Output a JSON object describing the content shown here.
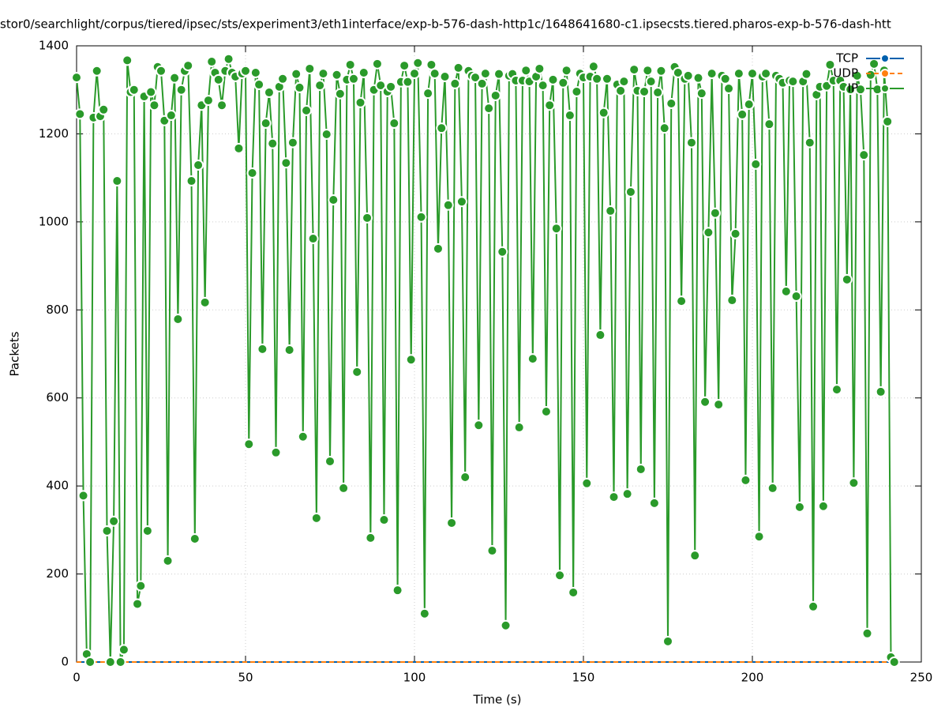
{
  "chart_data": {
    "type": "line",
    "title": "stor0/searchlight/corpus/tiered/ipsec/sts/experiment3/eth1interface/exp-b-576-dash-http1c/1648641680-c1.ipsecsts.tiered.pharos-exp-b-576-dash-htt",
    "x_label": "Time (s)",
    "y_label": "Packets",
    "xlim": [
      0,
      250
    ],
    "ylim": [
      0,
      1400
    ],
    "xticks": [
      0,
      50,
      100,
      150,
      200,
      250
    ],
    "yticks": [
      0,
      200,
      400,
      600,
      800,
      1000,
      1200,
      1400
    ],
    "grid": true,
    "legend": "top-right",
    "x": [
      0,
      1,
      2,
      3,
      4,
      5,
      6,
      7,
      8,
      9,
      10,
      11,
      12,
      13,
      14,
      15,
      16,
      17,
      18,
      19,
      20,
      21,
      22,
      23,
      24,
      25,
      26,
      27,
      28,
      29,
      30,
      31,
      32,
      33,
      34,
      35,
      36,
      37,
      38,
      39,
      40,
      41,
      42,
      43,
      44,
      45,
      46,
      47,
      48,
      49,
      50,
      51,
      52,
      53,
      54,
      55,
      56,
      57,
      58,
      59,
      60,
      61,
      62,
      63,
      64,
      65,
      66,
      67,
      68,
      69,
      70,
      71,
      72,
      73,
      74,
      75,
      76,
      77,
      78,
      79,
      80,
      81,
      82,
      83,
      84,
      85,
      86,
      87,
      88,
      89,
      90,
      91,
      92,
      93,
      94,
      95,
      96,
      97,
      98,
      99,
      100,
      101,
      102,
      103,
      104,
      105,
      106,
      107,
      108,
      109,
      110,
      111,
      112,
      113,
      114,
      115,
      116,
      117,
      118,
      119,
      120,
      121,
      122,
      123,
      124,
      125,
      126,
      127,
      128,
      129,
      130,
      131,
      132,
      133,
      134,
      135,
      136,
      137,
      138,
      139,
      140,
      141,
      142,
      143,
      144,
      145,
      146,
      147,
      148,
      149,
      150,
      151,
      152,
      153,
      154,
      155,
      156,
      157,
      158,
      159,
      160,
      161,
      162,
      163,
      164,
      165,
      166,
      167,
      168,
      169,
      170,
      171,
      172,
      173,
      174,
      175,
      176,
      177,
      178,
      179,
      180,
      181,
      182,
      183,
      184,
      185,
      186,
      187,
      188,
      189,
      190,
      191,
      192,
      193,
      194,
      195,
      196,
      197,
      198,
      199,
      200,
      201,
      202,
      203,
      204,
      205,
      206,
      207,
      208,
      209,
      210,
      211,
      212,
      213,
      214,
      215,
      216,
      217,
      218,
      219,
      220,
      221,
      222,
      223,
      224,
      225,
      226,
      227,
      228,
      229,
      230,
      231,
      232,
      233,
      234,
      235,
      236,
      237,
      238,
      239,
      240,
      241,
      242
    ],
    "series": [
      {
        "name": "TCP",
        "color": "#0060ad",
        "dashed": false,
        "values": [
          0,
          0,
          0,
          0,
          0,
          0,
          0,
          0,
          0,
          0,
          0,
          0,
          0,
          0,
          0,
          0,
          0,
          0,
          0,
          0,
          0,
          0,
          0,
          0,
          0,
          0,
          0,
          0,
          0,
          0,
          0,
          0,
          0,
          0,
          0,
          0,
          0,
          0,
          0,
          0,
          0,
          0,
          0,
          0,
          0,
          0,
          0,
          0,
          0,
          0,
          0,
          0,
          0,
          0,
          0,
          0,
          0,
          0,
          0,
          0,
          0,
          0,
          0,
          0,
          0,
          0,
          0,
          0,
          0,
          0,
          0,
          0,
          0,
          0,
          0,
          0,
          0,
          0,
          0,
          0,
          0,
          0,
          0,
          0,
          0,
          0,
          0,
          0,
          0,
          0,
          0,
          0,
          0,
          0,
          0,
          0,
          0,
          0,
          0,
          0,
          0,
          0,
          0,
          0,
          0,
          0,
          0,
          0,
          0,
          0,
          0,
          0,
          0,
          0,
          0,
          0,
          0,
          0,
          0,
          0,
          0,
          0,
          0,
          0,
          0,
          0,
          0,
          0,
          0,
          0,
          0,
          0,
          0,
          0,
          0,
          0,
          0,
          0,
          0,
          0,
          0,
          0,
          0,
          0,
          0,
          0,
          0,
          0,
          0,
          0,
          0,
          0,
          0,
          0,
          0,
          0,
          0,
          0,
          0,
          0,
          0,
          0,
          0,
          0,
          0,
          0,
          0,
          0,
          0,
          0,
          0,
          0,
          0,
          0,
          0,
          0,
          0,
          0,
          0,
          0,
          0,
          0,
          0,
          0,
          0,
          0,
          0,
          0,
          0,
          0,
          0,
          0,
          0,
          0,
          0,
          0,
          0,
          0,
          0,
          0,
          0,
          0,
          0,
          0,
          0,
          0,
          0,
          0,
          0,
          0,
          0,
          0,
          0,
          0,
          0,
          0,
          0,
          0,
          0,
          0,
          0,
          0,
          0,
          0,
          0,
          0,
          0,
          0,
          0,
          0,
          0,
          0,
          0,
          0,
          0,
          0,
          0,
          0,
          0,
          0,
          0,
          0,
          0
        ]
      },
      {
        "name": "UDP",
        "color": "#ff7f0e",
        "dashed": true,
        "values": [
          0,
          0,
          0,
          0,
          0,
          0,
          0,
          0,
          0,
          0,
          0,
          0,
          0,
          0,
          0,
          0,
          0,
          0,
          0,
          0,
          0,
          0,
          0,
          0,
          0,
          0,
          0,
          0,
          0,
          0,
          0,
          0,
          0,
          0,
          0,
          0,
          0,
          0,
          0,
          0,
          0,
          0,
          0,
          0,
          0,
          0,
          0,
          0,
          0,
          0,
          0,
          0,
          0,
          0,
          0,
          0,
          0,
          0,
          0,
          0,
          0,
          0,
          0,
          0,
          0,
          0,
          0,
          0,
          0,
          0,
          0,
          0,
          0,
          0,
          0,
          0,
          0,
          0,
          0,
          0,
          0,
          0,
          0,
          0,
          0,
          0,
          0,
          0,
          0,
          0,
          0,
          0,
          0,
          0,
          0,
          0,
          0,
          0,
          0,
          0,
          0,
          0,
          0,
          0,
          0,
          0,
          0,
          0,
          0,
          0,
          0,
          0,
          0,
          0,
          0,
          0,
          0,
          0,
          0,
          0,
          0,
          0,
          0,
          0,
          0,
          0,
          0,
          0,
          0,
          0,
          0,
          0,
          0,
          0,
          0,
          0,
          0,
          0,
          0,
          0,
          0,
          0,
          0,
          0,
          0,
          0,
          0,
          0,
          0,
          0,
          0,
          0,
          0,
          0,
          0,
          0,
          0,
          0,
          0,
          0,
          0,
          0,
          0,
          0,
          0,
          0,
          0,
          0,
          0,
          0,
          0,
          0,
          0,
          0,
          0,
          0,
          0,
          0,
          0,
          0,
          0,
          0,
          0,
          0,
          0,
          0,
          0,
          0,
          0,
          0,
          0,
          0,
          0,
          0,
          0,
          0,
          0,
          0,
          0,
          0,
          0,
          0,
          0,
          0,
          0,
          0,
          0,
          0,
          0,
          0,
          0,
          0,
          0,
          0,
          0,
          0,
          0,
          0,
          0,
          0,
          0,
          0,
          0,
          0,
          0,
          0,
          0,
          0,
          0,
          0,
          0,
          0,
          0,
          0,
          0,
          0,
          0,
          0,
          0,
          0,
          0,
          0,
          0
        ]
      },
      {
        "name": "IP",
        "color": "#2a9a2a",
        "dashed": false,
        "points": true,
        "values": [
          1328,
          1245,
          378,
          18,
          0,
          1237,
          1343,
          1240,
          1255,
          298,
          0,
          320,
          1093,
          0,
          28,
          1367,
          1295,
          1300,
          132,
          173,
          1285,
          298,
          1295,
          1265,
          1352,
          1343,
          1230,
          230,
          1242,
          1327,
          779,
          1300,
          1343,
          1355,
          1093,
          280,
          1129,
          1265,
          817,
          1276,
          1364,
          1339,
          1323,
          1265,
          1343,
          1370,
          1339,
          1330,
          1167,
          1337,
          1343,
          495,
          1111,
          1339,
          1312,
          711,
          1224,
          1294,
          1178,
          476,
          1307,
          1325,
          1134,
          709,
          1180,
          1336,
          1305,
          512,
          1253,
          1348,
          962,
          327,
          1310,
          1337,
          1199,
          456,
          1050,
          1334,
          1291,
          395,
          1323,
          1357,
          1325,
          659,
          1271,
          1339,
          1009,
          282,
          1300,
          1359,
          1310,
          323,
          1296,
          1307,
          1224,
          163,
          1318,
          1355,
          1318,
          687,
          1337,
          1361,
          1011,
          110,
          1292,
          1357,
          1337,
          939,
          1213,
          1330,
          1038,
          316,
          1314,
          1350,
          1046,
          420,
          1343,
          1332,
          1328,
          538,
          1314,
          1337,
          1258,
          253,
          1287,
          1336,
          932,
          83,
          1332,
          1336,
          1321,
          533,
          1321,
          1344,
          1319,
          689,
          1330,
          1348,
          1310,
          569,
          1265,
          1323,
          985,
          197,
          1316,
          1344,
          1242,
          158,
          1296,
          1337,
          1328,
          406,
          1330,
          1353,
          1325,
          743,
          1248,
          1325,
          1025,
          375,
          1312,
          1298,
          1319,
          382,
          1068,
          1346,
          1298,
          438,
          1296,
          1344,
          1319,
          361,
          1294,
          1343,
          1213,
          47,
          1269,
          1352,
          1339,
          820,
          1325,
          1332,
          1180,
          242,
          1327,
          1292,
          591,
          976,
          1337,
          1020,
          585,
          1332,
          1325,
          1303,
          822,
          973,
          1337,
          1244,
          413,
          1267,
          1337,
          1131,
          285,
          1330,
          1337,
          1222,
          395,
          1332,
          1325,
          1316,
          842,
          1321,
          1319,
          831,
          352,
          1319,
          1336,
          1180,
          126,
          1289,
          1307,
          354,
          1309,
          1357,
          1321,
          619,
          1321,
          1307,
          869,
          1301,
          407,
          1332,
          1301,
          1152,
          65,
          1334,
          1359,
          1301,
          614,
          1344,
          1228,
          11,
          0
        ]
      }
    ]
  }
}
